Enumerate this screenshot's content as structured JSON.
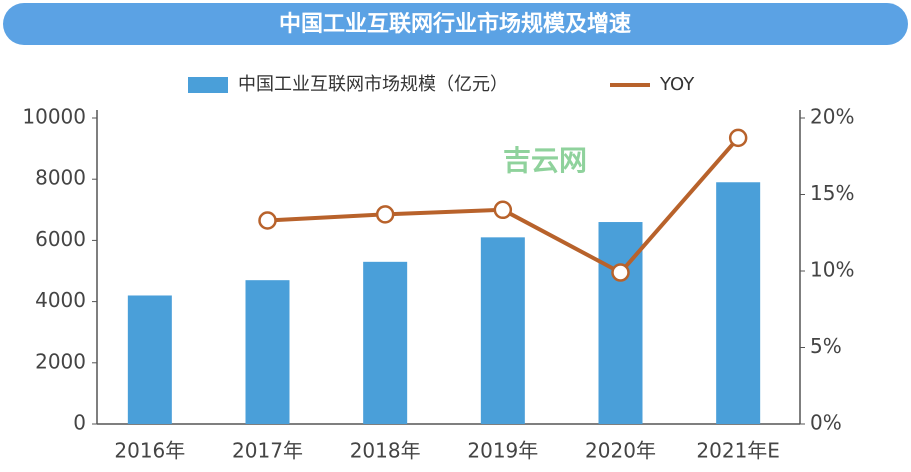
{
  "chart_data": {
    "type": "bar",
    "title": "中国工业互联网行业市场规模及增速",
    "watermark": "吉云网",
    "categories": [
      "2016年",
      "2017年",
      "2018年",
      "2019年",
      "2020年",
      "2021年E"
    ],
    "series": [
      {
        "name": "中国工业互联网市场规模（亿元）",
        "color": "#4a9fd9",
        "values": [
          4200,
          4700,
          5300,
          6100,
          6600,
          7900
        ]
      },
      {
        "name": "YOY",
        "type": "line",
        "axis": "y2",
        "color": "#b8622b",
        "values": [
          null,
          13.3,
          13.7,
          14.0,
          9.9,
          18.7
        ]
      }
    ],
    "ylim": [
      0,
      10000
    ],
    "yticks": [
      0,
      2000,
      4000,
      6000,
      8000,
      10000
    ],
    "y2lim": [
      0,
      20
    ],
    "y2ticks": [
      {
        "value": 0,
        "label": "0%"
      },
      {
        "value": 5,
        "label": "5%"
      },
      {
        "value": 10,
        "label": "10%"
      },
      {
        "value": 15,
        "label": "15%"
      },
      {
        "value": 20,
        "label": "20%"
      }
    ]
  }
}
